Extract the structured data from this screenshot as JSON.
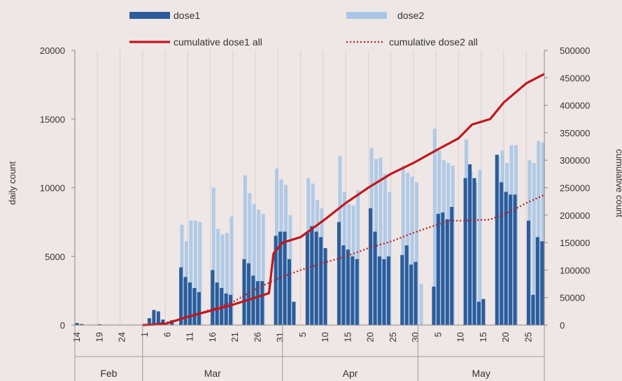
{
  "chart_data": {
    "type": "bar",
    "xlabel": "",
    "ylabel": "daily count",
    "y2label": "cumulative count",
    "ylim": [
      0,
      20000
    ],
    "y2lim": [
      0,
      500000
    ],
    "y_ticks": [
      0,
      5000,
      10000,
      15000,
      20000
    ],
    "y2_ticks": [
      0,
      50000,
      100000,
      150000,
      200000,
      250000,
      300000,
      350000,
      400000,
      450000,
      500000
    ],
    "x_start": "14 Feb",
    "x_end": "28 May",
    "x_ticks": [
      {
        "day": 0,
        "label": "14"
      },
      {
        "day": 5,
        "label": "19"
      },
      {
        "day": 10,
        "label": "24"
      },
      {
        "day": 15,
        "label": "1"
      },
      {
        "day": 20,
        "label": "6"
      },
      {
        "day": 25,
        "label": "11"
      },
      {
        "day": 30,
        "label": "16"
      },
      {
        "day": 35,
        "label": "21"
      },
      {
        "day": 40,
        "label": "26"
      },
      {
        "day": 45,
        "label": "31"
      },
      {
        "day": 50,
        "label": "5"
      },
      {
        "day": 55,
        "label": "10"
      },
      {
        "day": 60,
        "label": "15"
      },
      {
        "day": 65,
        "label": "20"
      },
      {
        "day": 70,
        "label": "25"
      },
      {
        "day": 75,
        "label": "30"
      },
      {
        "day": 80,
        "label": "5"
      },
      {
        "day": 85,
        "label": "10"
      },
      {
        "day": 90,
        "label": "15"
      },
      {
        "day": 95,
        "label": "20"
      },
      {
        "day": 100,
        "label": "25"
      }
    ],
    "months": [
      {
        "label": "Feb",
        "start": 0,
        "end": 15
      },
      {
        "label": "Mar",
        "start": 15,
        "end": 46
      },
      {
        "label": "Apr",
        "start": 46,
        "end": 76
      },
      {
        "label": "May",
        "start": 76,
        "end": 104
      }
    ],
    "legend": {
      "position": "top",
      "items": [
        {
          "label": "dose1",
          "kind": "bar",
          "color": "#2c5c9a"
        },
        {
          "label": "dose2",
          "kind": "bar",
          "color": "#a9c6e6"
        },
        {
          "label": "cumulative dose1 all",
          "kind": "line",
          "color": "#c0171f"
        },
        {
          "label": "cumulative dose2 all",
          "kind": "dotted",
          "color": "#c0171f"
        }
      ]
    },
    "series": [
      {
        "name": "dose1",
        "color": "#2c5c9a",
        "points": [
          [
            0,
            150
          ],
          [
            1,
            80
          ],
          [
            5,
            60
          ],
          [
            16,
            500
          ],
          [
            17,
            1100
          ],
          [
            18,
            1000
          ],
          [
            19,
            400
          ],
          [
            21,
            350
          ],
          [
            23,
            4200
          ],
          [
            24,
            3500
          ],
          [
            25,
            3100
          ],
          [
            26,
            2700
          ],
          [
            27,
            2400
          ],
          [
            30,
            4000
          ],
          [
            31,
            3100
          ],
          [
            32,
            2700
          ],
          [
            33,
            2300
          ],
          [
            34,
            2200
          ],
          [
            37,
            4800
          ],
          [
            38,
            4500
          ],
          [
            39,
            3600
          ],
          [
            40,
            3200
          ],
          [
            41,
            3200
          ],
          [
            44,
            6500
          ],
          [
            45,
            6800
          ],
          [
            46,
            6800
          ],
          [
            47,
            4800
          ],
          [
            48,
            1700
          ],
          [
            51,
            6800
          ],
          [
            52,
            7200
          ],
          [
            53,
            6800
          ],
          [
            54,
            6400
          ],
          [
            55,
            5600
          ],
          [
            58,
            7500
          ],
          [
            59,
            5800
          ],
          [
            60,
            5500
          ],
          [
            61,
            5000
          ],
          [
            62,
            4800
          ],
          [
            65,
            8500
          ],
          [
            66,
            6800
          ],
          [
            67,
            5000
          ],
          [
            68,
            4800
          ],
          [
            69,
            5000
          ],
          [
            72,
            5100
          ],
          [
            73,
            5800
          ],
          [
            74,
            4400
          ],
          [
            75,
            4600
          ],
          [
            79,
            2800
          ],
          [
            80,
            8100
          ],
          [
            81,
            8200
          ],
          [
            82,
            7700
          ],
          [
            83,
            8600
          ],
          [
            86,
            10700
          ],
          [
            87,
            11700
          ],
          [
            88,
            10700
          ],
          [
            89,
            1700
          ],
          [
            90,
            1900
          ],
          [
            93,
            12400
          ],
          [
            94,
            10400
          ],
          [
            95,
            9700
          ],
          [
            96,
            9500
          ],
          [
            97,
            9500
          ],
          [
            100,
            7600
          ],
          [
            101,
            2200
          ],
          [
            102,
            6400
          ],
          [
            103,
            6100
          ]
        ]
      },
      {
        "name": "dose2",
        "color": "#a9c6e6",
        "points": [
          [
            23,
            7300
          ],
          [
            24,
            6100
          ],
          [
            25,
            7600
          ],
          [
            26,
            7600
          ],
          [
            27,
            7500
          ],
          [
            30,
            10000
          ],
          [
            31,
            7000
          ],
          [
            32,
            6600
          ],
          [
            33,
            6700
          ],
          [
            34,
            7900
          ],
          [
            37,
            10900
          ],
          [
            38,
            9600
          ],
          [
            39,
            8800
          ],
          [
            40,
            8400
          ],
          [
            41,
            8100
          ],
          [
            44,
            11400
          ],
          [
            45,
            10600
          ],
          [
            46,
            10200
          ],
          [
            47,
            8000
          ],
          [
            51,
            10700
          ],
          [
            52,
            10300
          ],
          [
            53,
            9100
          ],
          [
            54,
            8500
          ],
          [
            58,
            12300
          ],
          [
            59,
            9700
          ],
          [
            60,
            8800
          ],
          [
            61,
            8700
          ],
          [
            62,
            9800
          ],
          [
            65,
            12900
          ],
          [
            66,
            12100
          ],
          [
            67,
            12200
          ],
          [
            68,
            11000
          ],
          [
            69,
            9700
          ],
          [
            72,
            11600
          ],
          [
            73,
            11100
          ],
          [
            74,
            10800
          ],
          [
            75,
            10400
          ],
          [
            76,
            3000
          ],
          [
            79,
            14300
          ],
          [
            80,
            12700
          ],
          [
            81,
            12000
          ],
          [
            82,
            11800
          ],
          [
            83,
            11600
          ],
          [
            86,
            13500
          ],
          [
            87,
            11200
          ],
          [
            88,
            10400
          ],
          [
            89,
            11300
          ],
          [
            93,
            12300
          ],
          [
            94,
            12700
          ],
          [
            95,
            11800
          ],
          [
            96,
            13100
          ],
          [
            97,
            13100
          ],
          [
            100,
            12000
          ],
          [
            101,
            11800
          ],
          [
            102,
            13400
          ],
          [
            103,
            13300
          ]
        ]
      },
      {
        "name": "cumulative dose1 all",
        "color": "#c0171f",
        "axis": "right",
        "style": "solid",
        "points": [
          [
            15,
            0
          ],
          [
            20,
            2000
          ],
          [
            25,
            15000
          ],
          [
            30,
            26000
          ],
          [
            35,
            37000
          ],
          [
            40,
            50000
          ],
          [
            43,
            58000
          ],
          [
            44,
            130000
          ],
          [
            46,
            150000
          ],
          [
            50,
            160000
          ],
          [
            55,
            190000
          ],
          [
            60,
            222000
          ],
          [
            65,
            250000
          ],
          [
            70,
            275000
          ],
          [
            75,
            295000
          ],
          [
            80,
            318000
          ],
          [
            85,
            340000
          ],
          [
            88,
            365000
          ],
          [
            92,
            375000
          ],
          [
            95,
            405000
          ],
          [
            100,
            440000
          ],
          [
            104,
            457000
          ]
        ]
      },
      {
        "name": "cumulative dose2 all",
        "color": "#c0171f",
        "axis": "right",
        "style": "dotted",
        "points": [
          [
            15,
            0
          ],
          [
            20,
            4000
          ],
          [
            25,
            15000
          ],
          [
            30,
            28000
          ],
          [
            35,
            42000
          ],
          [
            40,
            65000
          ],
          [
            45,
            85000
          ],
          [
            50,
            100000
          ],
          [
            55,
            113000
          ],
          [
            60,
            125000
          ],
          [
            65,
            140000
          ],
          [
            70,
            152000
          ],
          [
            75,
            168000
          ],
          [
            80,
            182000
          ],
          [
            83,
            190000
          ],
          [
            86,
            190000
          ],
          [
            92,
            192000
          ],
          [
            96,
            205000
          ],
          [
            100,
            222000
          ],
          [
            104,
            237000
          ]
        ]
      }
    ]
  }
}
